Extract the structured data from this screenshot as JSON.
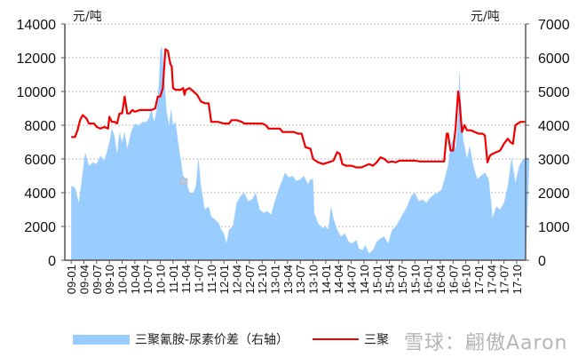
{
  "chart_data": {
    "type": "area+line",
    "title": "",
    "left_axis": {
      "unit_label": "元/吨",
      "min": 0,
      "max": 14000,
      "step": 2000,
      "ticks": [
        "0",
        "2000",
        "4000",
        "6000",
        "8000",
        "10000",
        "12000",
        "14000"
      ]
    },
    "right_axis": {
      "unit_label": "元/吨",
      "min": 0,
      "max": 7000,
      "step": 1000,
      "ticks": [
        "0",
        "1000",
        "2000",
        "3000",
        "4000",
        "5000",
        "6000",
        "7000"
      ]
    },
    "x_ticks": [
      "09-01",
      "09-04",
      "09-07",
      "09-10",
      "10-01",
      "10-04",
      "10-07",
      "10-10",
      "11-01",
      "11-04",
      "11-07",
      "11-10",
      "12-01",
      "12-04",
      "12-07",
      "12-10",
      "13-01",
      "13-04",
      "13-07",
      "13-10",
      "14-01",
      "14-04",
      "14-07",
      "14-10",
      "15-01",
      "15-04",
      "15-07",
      "15-10",
      "16-01",
      "16-04",
      "16-07",
      "16-10",
      "17-01",
      "17-04",
      "17-07",
      "17-10"
    ],
    "grid": "horizontal dashed",
    "legend_position": "bottom",
    "series": [
      {
        "name": "三聚氰胺-尿素价差（右轴）",
        "type": "area",
        "axis": "right",
        "color": "#99ccff",
        "points": [
          [
            0,
            2200
          ],
          [
            0.3,
            2150
          ],
          [
            0.6,
            1700
          ],
          [
            0.9,
            2600
          ],
          [
            1.1,
            3200
          ],
          [
            1.4,
            2800
          ],
          [
            1.7,
            2900
          ],
          [
            2.0,
            2850
          ],
          [
            2.3,
            3100
          ],
          [
            2.6,
            2950
          ],
          [
            2.8,
            3200
          ],
          [
            3.0,
            3500
          ],
          [
            3.2,
            3900
          ],
          [
            3.4,
            3700
          ],
          [
            3.6,
            3150
          ],
          [
            3.8,
            3800
          ],
          [
            4.0,
            3500
          ],
          [
            4.2,
            3800
          ],
          [
            4.4,
            3300
          ],
          [
            4.7,
            3800
          ],
          [
            5.0,
            4050
          ],
          [
            5.3,
            4000
          ],
          [
            5.6,
            4100
          ],
          [
            5.9,
            4100
          ],
          [
            6.1,
            4200
          ],
          [
            6.3,
            4500
          ],
          [
            6.5,
            4100
          ],
          [
            6.7,
            4400
          ],
          [
            6.9,
            5300
          ],
          [
            7.0,
            6200
          ],
          [
            7.1,
            6350
          ],
          [
            7.2,
            6000
          ],
          [
            7.35,
            5200
          ],
          [
            7.5,
            4400
          ],
          [
            7.7,
            4000
          ],
          [
            7.85,
            4500
          ],
          [
            8.0,
            4000
          ],
          [
            8.2,
            4100
          ],
          [
            8.4,
            3500
          ],
          [
            8.6,
            3000
          ],
          [
            8.8,
            2500
          ],
          [
            9.0,
            2400
          ],
          [
            9.3,
            2000
          ],
          [
            9.6,
            2000
          ],
          [
            9.8,
            2200
          ],
          [
            10.0,
            3050
          ],
          [
            10.2,
            2200
          ],
          [
            10.5,
            1500
          ],
          [
            10.8,
            1600
          ],
          [
            11.0,
            1300
          ],
          [
            11.3,
            1200
          ],
          [
            11.6,
            1100
          ],
          [
            11.8,
            900
          ],
          [
            12.0,
            800
          ],
          [
            12.2,
            500
          ],
          [
            12.4,
            900
          ],
          [
            12.7,
            1000
          ],
          [
            13.0,
            1700
          ],
          [
            13.3,
            1900
          ],
          [
            13.6,
            2000
          ],
          [
            13.9,
            1750
          ],
          [
            14.2,
            1800
          ],
          [
            14.5,
            2000
          ],
          [
            14.8,
            1500
          ],
          [
            15.1,
            1400
          ],
          [
            15.4,
            1450
          ],
          [
            15.7,
            1350
          ],
          [
            16.0,
            1750
          ],
          [
            16.3,
            2100
          ],
          [
            16.6,
            2400
          ],
          [
            16.8,
            2600
          ],
          [
            17.1,
            2450
          ],
          [
            17.4,
            2500
          ],
          [
            17.7,
            2350
          ],
          [
            18.0,
            2400
          ],
          [
            18.3,
            2500
          ],
          [
            18.6,
            2250
          ],
          [
            18.8,
            2400
          ],
          [
            19.0,
            2400
          ],
          [
            19.1,
            1400
          ],
          [
            19.4,
            1100
          ],
          [
            19.7,
            950
          ],
          [
            20.0,
            1000
          ],
          [
            20.2,
            900
          ],
          [
            20.4,
            1600
          ],
          [
            20.6,
            1250
          ],
          [
            20.9,
            900
          ],
          [
            21.2,
            700
          ],
          [
            21.5,
            800
          ],
          [
            21.8,
            550
          ],
          [
            22.1,
            500
          ],
          [
            22.4,
            600
          ],
          [
            22.6,
            350
          ],
          [
            22.9,
            300
          ],
          [
            23.1,
            450
          ],
          [
            23.4,
            200
          ],
          [
            23.7,
            300
          ],
          [
            24.0,
            550
          ],
          [
            24.3,
            650
          ],
          [
            24.6,
            700
          ],
          [
            24.9,
            500
          ],
          [
            25.2,
            900
          ],
          [
            25.5,
            1000
          ],
          [
            25.8,
            1200
          ],
          [
            26.1,
            1400
          ],
          [
            26.4,
            1600
          ],
          [
            26.7,
            1900
          ],
          [
            27.0,
            2000
          ],
          [
            27.3,
            1750
          ],
          [
            27.6,
            1800
          ],
          [
            27.9,
            1700
          ],
          [
            28.2,
            1850
          ],
          [
            28.5,
            1950
          ],
          [
            28.8,
            2000
          ],
          [
            29.1,
            2100
          ],
          [
            29.4,
            2500
          ],
          [
            29.6,
            2800
          ],
          [
            29.8,
            3400
          ],
          [
            30.0,
            3600
          ],
          [
            30.2,
            3300
          ],
          [
            30.4,
            4200
          ],
          [
            30.5,
            5700
          ],
          [
            30.6,
            4800
          ],
          [
            30.8,
            3600
          ],
          [
            31.1,
            3000
          ],
          [
            31.3,
            3400
          ],
          [
            31.6,
            2800
          ],
          [
            31.9,
            2400
          ],
          [
            32.2,
            2500
          ],
          [
            32.5,
            2600
          ],
          [
            32.8,
            2400
          ],
          [
            33.0,
            1700
          ],
          [
            33.1,
            1250
          ],
          [
            33.4,
            1600
          ],
          [
            33.7,
            1500
          ],
          [
            34.0,
            1700
          ],
          [
            34.3,
            2200
          ],
          [
            34.6,
            3050
          ],
          [
            34.9,
            2300
          ],
          [
            35.2,
            2800
          ],
          [
            35.5,
            3000
          ],
          [
            35.8,
            3050
          ],
          [
            36.0,
            2950
          ]
        ]
      },
      {
        "name": "三聚氰胺",
        "legend_label_visible": "三聚",
        "type": "line",
        "axis": "left",
        "color": "#ee0000",
        "points": [
          [
            0,
            7300
          ],
          [
            0.3,
            7300
          ],
          [
            0.5,
            7700
          ],
          [
            0.7,
            8300
          ],
          [
            0.9,
            8600
          ],
          [
            1.2,
            8400
          ],
          [
            1.4,
            8100
          ],
          [
            1.8,
            8100
          ],
          [
            2.0,
            7900
          ],
          [
            2.3,
            7800
          ],
          [
            2.6,
            7900
          ],
          [
            2.9,
            7800
          ],
          [
            3.0,
            8500
          ],
          [
            3.2,
            8200
          ],
          [
            3.4,
            8200
          ],
          [
            3.6,
            8100
          ],
          [
            3.8,
            8700
          ],
          [
            4.0,
            8700
          ],
          [
            4.1,
            9200
          ],
          [
            4.2,
            9700
          ],
          [
            4.4,
            8700
          ],
          [
            4.6,
            8700
          ],
          [
            4.8,
            8900
          ],
          [
            5.0,
            8800
          ],
          [
            5.4,
            8900
          ],
          [
            5.8,
            8900
          ],
          [
            6.3,
            8900
          ],
          [
            6.6,
            9000
          ],
          [
            6.8,
            9700
          ],
          [
            7.0,
            9700
          ],
          [
            7.2,
            10200
          ],
          [
            7.4,
            12500
          ],
          [
            7.6,
            12400
          ],
          [
            7.8,
            11600
          ],
          [
            7.9,
            11500
          ],
          [
            8.0,
            10200
          ],
          [
            8.2,
            10100
          ],
          [
            8.6,
            10100
          ],
          [
            8.8,
            10200
          ],
          [
            8.9,
            9800
          ],
          [
            9.0,
            10100
          ],
          [
            9.3,
            10200
          ],
          [
            9.6,
            10000
          ],
          [
            9.9,
            9800
          ],
          [
            10.2,
            9400
          ],
          [
            10.5,
            9300
          ],
          [
            10.8,
            9300
          ],
          [
            11.0,
            8200
          ],
          [
            11.5,
            8200
          ],
          [
            12.0,
            8100
          ],
          [
            12.4,
            8100
          ],
          [
            12.6,
            8300
          ],
          [
            13.0,
            8300
          ],
          [
            13.4,
            8200
          ],
          [
            13.6,
            8100
          ],
          [
            14.0,
            8100
          ],
          [
            14.5,
            8100
          ],
          [
            15.0,
            8100
          ],
          [
            15.3,
            8000
          ],
          [
            15.5,
            7800
          ],
          [
            16.0,
            7800
          ],
          [
            16.4,
            7800
          ],
          [
            16.6,
            7600
          ],
          [
            17.0,
            7600
          ],
          [
            17.5,
            7600
          ],
          [
            17.8,
            7500
          ],
          [
            18.1,
            7500
          ],
          [
            18.4,
            6700
          ],
          [
            18.8,
            6600
          ],
          [
            19.0,
            6000
          ],
          [
            19.4,
            5800
          ],
          [
            19.8,
            5700
          ],
          [
            20.2,
            5800
          ],
          [
            20.6,
            5900
          ],
          [
            20.9,
            6400
          ],
          [
            21.1,
            6300
          ],
          [
            21.3,
            5700
          ],
          [
            21.6,
            5600
          ],
          [
            22.0,
            5600
          ],
          [
            22.4,
            5500
          ],
          [
            22.8,
            5500
          ],
          [
            23.1,
            5600
          ],
          [
            23.4,
            5700
          ],
          [
            23.7,
            5600
          ],
          [
            24.0,
            5800
          ],
          [
            24.3,
            6100
          ],
          [
            24.6,
            6000
          ],
          [
            24.9,
            5800
          ],
          [
            25.2,
            5850
          ],
          [
            25.5,
            5800
          ],
          [
            25.8,
            5900
          ],
          [
            26.2,
            5900
          ],
          [
            26.6,
            5900
          ],
          [
            27.0,
            5900
          ],
          [
            27.4,
            5850
          ],
          [
            27.8,
            5850
          ],
          [
            28.2,
            5850
          ],
          [
            28.6,
            5850
          ],
          [
            29.0,
            5850
          ],
          [
            29.3,
            5850
          ],
          [
            29.5,
            7500
          ],
          [
            29.6,
            7500
          ],
          [
            29.8,
            6500
          ],
          [
            30.0,
            6500
          ],
          [
            30.2,
            7800
          ],
          [
            30.4,
            10000
          ],
          [
            30.5,
            9500
          ],
          [
            30.7,
            7600
          ],
          [
            30.9,
            8000
          ],
          [
            31.1,
            7700
          ],
          [
            31.4,
            7700
          ],
          [
            31.7,
            7600
          ],
          [
            32.0,
            7500
          ],
          [
            32.3,
            7500
          ],
          [
            32.5,
            7400
          ],
          [
            32.7,
            5800
          ],
          [
            32.9,
            6200
          ],
          [
            33.1,
            6300
          ],
          [
            33.4,
            6400
          ],
          [
            33.7,
            6500
          ],
          [
            34.0,
            6900
          ],
          [
            34.3,
            7200
          ],
          [
            34.5,
            7000
          ],
          [
            34.7,
            6900
          ],
          [
            34.9,
            8000
          ],
          [
            35.1,
            8100
          ],
          [
            35.3,
            8200
          ],
          [
            35.6,
            8200
          ],
          [
            36.0,
            8200
          ]
        ]
      }
    ]
  },
  "legend": {
    "area_label": "三聚氰胺-尿素价差（右轴）",
    "line_label": "三聚"
  },
  "watermark": "雪球：翩傲Aaron"
}
